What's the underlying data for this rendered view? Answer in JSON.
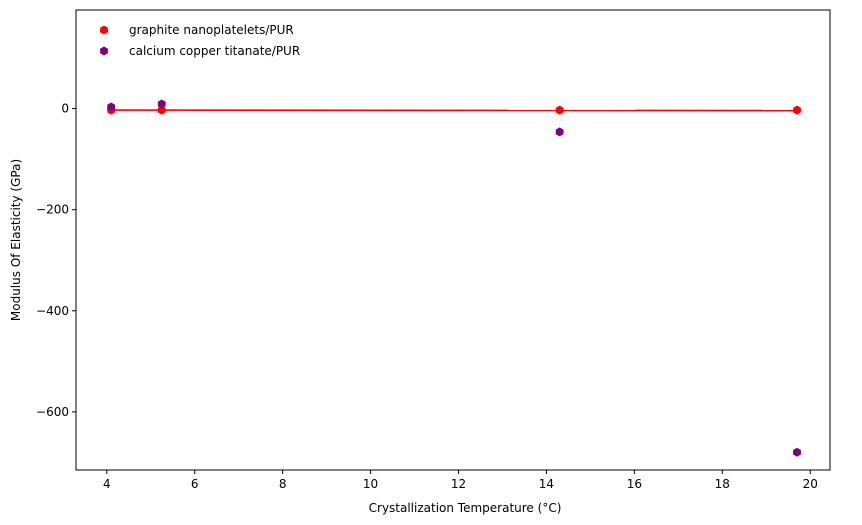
{
  "chart_data": {
    "type": "scatter",
    "xlabel": "Crystallization Temperature (°C)",
    "ylabel": "Modulus Of Elasticity (GPa)",
    "xlim": [
      3.3,
      20.45
    ],
    "ylim": [
      -715,
      195
    ],
    "xticks": [
      4,
      6,
      8,
      10,
      12,
      14,
      16,
      18,
      20
    ],
    "yticks": [
      0,
      -200,
      -400,
      -600
    ],
    "ytick_labels": [
      "0",
      "−200",
      "−400",
      "−600"
    ],
    "grid": false,
    "legend_position": "top-left",
    "series": [
      {
        "name": "graphite nanoplatelets/PUR",
        "color": "#ff0000",
        "marker": "hexagon",
        "points": [
          {
            "x": 4.1,
            "y": -3
          },
          {
            "x": 5.25,
            "y": -3
          },
          {
            "x": 14.3,
            "y": -3
          },
          {
            "x": 19.7,
            "y": -3
          }
        ],
        "trend_line": {
          "x": [
            4.1,
            19.7
          ],
          "y": [
            -3,
            -4
          ]
        }
      },
      {
        "name": "calcium copper titanate/PUR",
        "color": "#800080",
        "marker": "hexagon",
        "points": [
          {
            "x": 4.1,
            "y": 3
          },
          {
            "x": 5.25,
            "y": 9
          },
          {
            "x": 14.3,
            "y": -46
          },
          {
            "x": 19.7,
            "y": -680
          }
        ]
      }
    ]
  }
}
